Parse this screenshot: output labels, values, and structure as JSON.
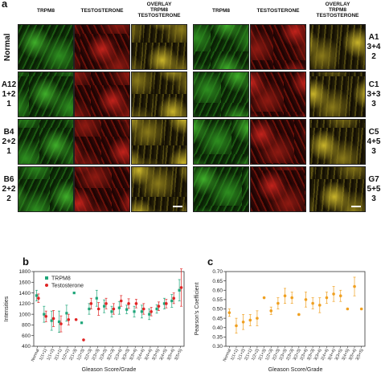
{
  "panel_a": {
    "letter": "a",
    "left_headers": [
      "TRPM8",
      "TESTOSTERONE",
      "OVERLAY\nTRPM8\nTESTOSTERONE"
    ],
    "right_headers": [
      "TRPM8",
      "TESTOSTERONE",
      "OVERLAY\nTRPM8\nTESTOSTERONE"
    ],
    "left_rows": [
      "Normal",
      "A12\n1+2\n1",
      "B4\n2+2\n1",
      "B6\n2+2\n2"
    ],
    "right_rows": [
      "A1\n3+4\n2",
      "C1\n3+3\n3",
      "C5\n4+5\n3",
      "G7\n5+5\n3"
    ]
  },
  "panel_b": {
    "letter": "b"
  },
  "panel_c": {
    "letter": "c"
  },
  "chart_data": [
    {
      "type": "scatter",
      "xlabel": "Gleason Score/Grade",
      "ylabel": "Intensities",
      "ylim": [
        400,
        1800
      ],
      "yticks": [
        400,
        600,
        800,
        1000,
        1200,
        1400,
        1600,
        1800
      ],
      "legend_position": "top-left",
      "categories": [
        "Normal",
        "1(1+1)",
        "1(1+2)",
        "2(1+1)",
        "1(2+2)",
        "2(1+3)",
        "1(2+3)",
        "2(2+3)",
        "2(3+3)",
        "2(3+3)",
        "3(2+3)",
        "2(3+4)",
        "3(3+3)",
        "3(3+4)",
        "2(4+4)",
        "3(4+4)",
        "3(3+5)",
        "3(4+5)",
        "3(5+4)",
        "3(5+5)"
      ],
      "series": [
        {
          "name": "TRPM8",
          "color": "#1fa67a",
          "values": [
            1350,
            1000,
            880,
            860,
            1020,
            1400,
            840,
            1100,
            1300,
            1150,
            1050,
            1120,
            1090,
            1050,
            1050,
            1000,
            1100,
            1200,
            1250,
            1450
          ],
          "err": [
            100,
            150,
            180,
            200,
            150,
            0,
            0,
            100,
            150,
            120,
            100,
            120,
            80,
            100,
            120,
            100,
            80,
            100,
            120,
            200
          ]
        },
        {
          "name": "Testosterone",
          "color": "#e02424",
          "values": [
            1300,
            960,
            920,
            820,
            900,
            900,
            520,
            1200,
            1100,
            1200,
            1100,
            1250,
            1200,
            1200,
            1100,
            1050,
            1150,
            1200,
            1300,
            1500
          ],
          "err": [
            80,
            100,
            150,
            150,
            100,
            0,
            0,
            100,
            120,
            100,
            100,
            100,
            90,
            80,
            100,
            80,
            80,
            80,
            100,
            350
          ]
        }
      ]
    },
    {
      "type": "scatter",
      "xlabel": "Gleason Score/Grade",
      "ylabel": "Pearson's Coefficient",
      "ylim": [
        0.3,
        0.7
      ],
      "yticks": [
        "0.30",
        "0.35",
        "0.40",
        "0.45",
        "0.50",
        "0.55",
        "0.60",
        "0.65",
        "0.70"
      ],
      "categories": [
        "Normal",
        "1(1+1)",
        "1(1+2)",
        "2(1+1)",
        "1(2+2)",
        "2(1+3)",
        "1(2+3)",
        "2(2+3)",
        "2(3+3)",
        "2(3+3)",
        "3(2+3)",
        "2(3+4)",
        "3(3+3)",
        "3(3+4)",
        "2(4+4)",
        "3(4+4)",
        "3(3+5)",
        "3(4+5)",
        "3(5+4)",
        "3(5+5)"
      ],
      "series": [
        {
          "name": "",
          "color": "#f0a020",
          "values": [
            0.48,
            0.41,
            0.43,
            0.44,
            0.45,
            0.56,
            0.49,
            0.53,
            0.57,
            0.56,
            0.47,
            0.55,
            0.53,
            0.52,
            0.56,
            0.58,
            0.57,
            0.5,
            0.62,
            0.5
          ],
          "err": [
            0.02,
            0.04,
            0.04,
            0.03,
            0.04,
            0,
            0.02,
            0.03,
            0.04,
            0.03,
            0,
            0.04,
            0.03,
            0.04,
            0.03,
            0.04,
            0.03,
            0,
            0.05,
            0
          ]
        }
      ]
    }
  ]
}
